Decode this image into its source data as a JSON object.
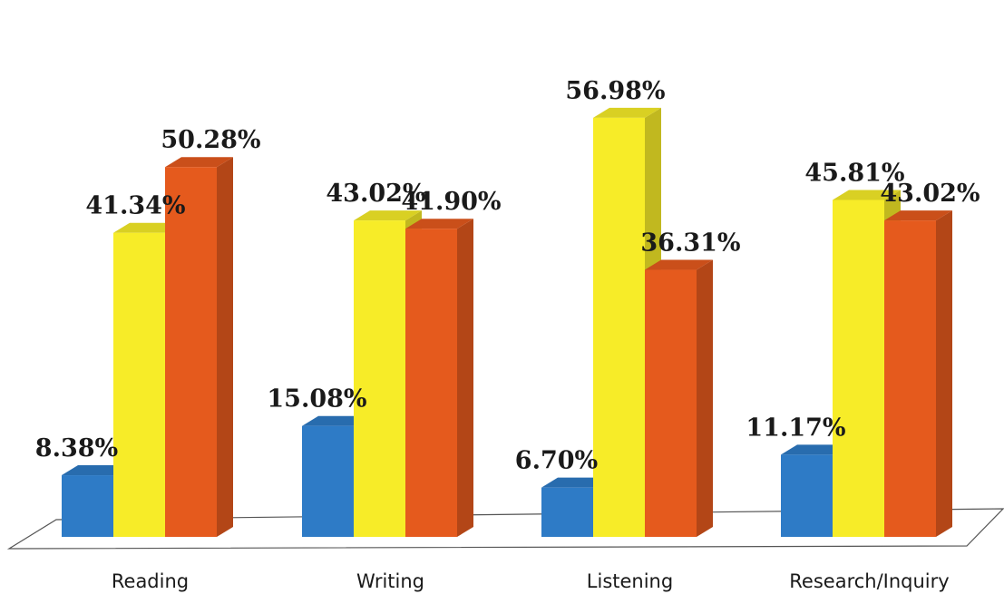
{
  "chart_data": {
    "type": "bar",
    "categories": [
      "Reading",
      "Writing",
      "Listening",
      "Research/Inquiry"
    ],
    "series": [
      {
        "values": [
          8.38,
          15.08,
          6.7,
          11.17
        ],
        "color": "#2e7bc6"
      },
      {
        "values": [
          41.34,
          43.02,
          56.98,
          45.81
        ],
        "color": "#f7ec28"
      },
      {
        "values": [
          50.28,
          41.9,
          36.31,
          43.02
        ],
        "color": "#e55a1d"
      }
    ],
    "data_labels": [
      [
        "8.38%",
        "15.08%",
        "6.70%",
        "11.17%"
      ],
      [
        "41.34%",
        "43.02%",
        "56.98%",
        "45.81%"
      ],
      [
        "50.28%",
        "41.90%",
        "36.31%",
        "43.02%"
      ]
    ],
    "title": "",
    "xlabel": "",
    "ylabel": "",
    "ylim": [
      0,
      60
    ],
    "style": "3d-column",
    "legend": "none",
    "grid": false
  }
}
